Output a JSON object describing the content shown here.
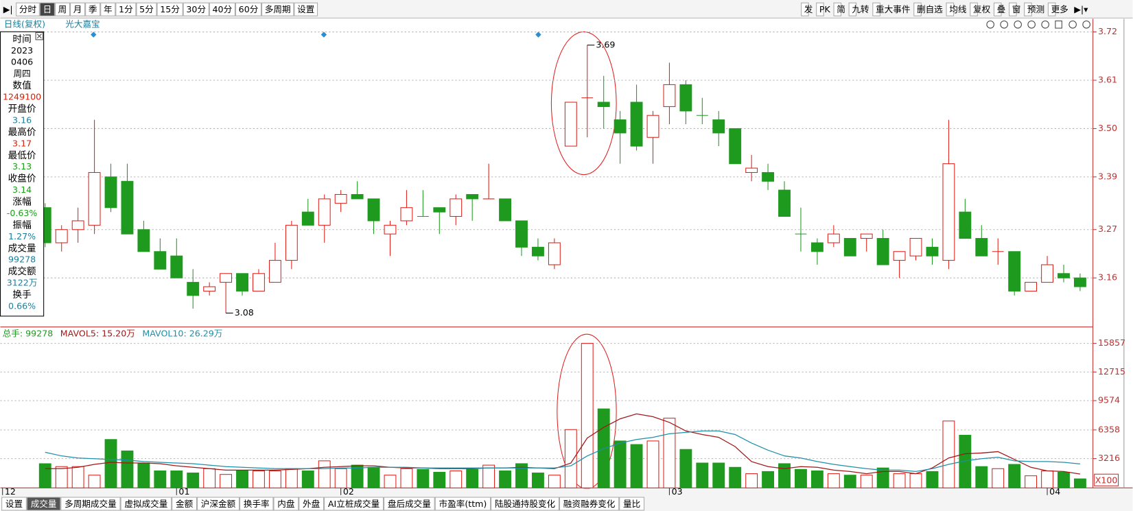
{
  "toolbar": {
    "left": [
      "分时",
      "日",
      "周",
      "月",
      "季",
      "年",
      "1分",
      "5分",
      "15分",
      "30分",
      "40分",
      "60分",
      "多周期",
      "设置"
    ],
    "selected": 1,
    "right": [
      "发",
      "PK",
      "简",
      "九转",
      "重大事件",
      "删自选",
      "均线",
      "复权",
      "叠",
      "窗",
      "预测",
      "更多"
    ]
  },
  "header": {
    "period": "日线(复权)",
    "stock": "光大嘉宝"
  },
  "info_panel": [
    {
      "label": "时间",
      "lines": [
        "2023",
        "0406",
        "周四"
      ],
      "color": "#000000"
    },
    {
      "label": "数值",
      "lines": [
        "1249100"
      ],
      "color": "#d81e06"
    },
    {
      "label": "开盘价",
      "lines": [
        "3.16"
      ],
      "color": "#1a7fa0"
    },
    {
      "label": "最高价",
      "lines": [
        "3.17"
      ],
      "color": "#d81e06"
    },
    {
      "label": "最低价",
      "lines": [
        "3.13"
      ],
      "color": "#16a016"
    },
    {
      "label": "收盘价",
      "lines": [
        "3.14"
      ],
      "color": "#16a016"
    },
    {
      "label": "涨幅",
      "lines": [
        "-0.63%"
      ],
      "color": "#16a016"
    },
    {
      "label": "振幅",
      "lines": [
        "1.27%"
      ],
      "color": "#1a7fa0"
    },
    {
      "label": "成交量",
      "lines": [
        "99278"
      ],
      "color": "#1a7fa0"
    },
    {
      "label": "成交额",
      "lines": [
        "3122万"
      ],
      "color": "#1a7fa0"
    },
    {
      "label": "换手",
      "lines": [
        "0.66%"
      ],
      "color": "#1a7fa0"
    }
  ],
  "chart_data": [
    {
      "type": "candlestick",
      "up_color": "#e0201a",
      "down_color": "#1e9a1e",
      "open": [
        3.32,
        3.24,
        3.27,
        3.28,
        3.39,
        3.38,
        3.27,
        3.22,
        3.21,
        3.15,
        3.13,
        3.15,
        3.17,
        3.13,
        3.15,
        3.2,
        3.31,
        3.28,
        3.33,
        3.35,
        3.34,
        3.26,
        3.29,
        3.3,
        3.32,
        3.3,
        3.35,
        3.34,
        3.34,
        3.29,
        3.23,
        3.19,
        3.46,
        3.57,
        3.56,
        3.52,
        3.56,
        3.48,
        3.55,
        3.6,
        3.53,
        3.52,
        3.5,
        3.4,
        3.4,
        3.36,
        3.26,
        3.24,
        3.24,
        3.25,
        3.25,
        3.25,
        3.2,
        3.21,
        3.23,
        3.2,
        3.31,
        3.25,
        3.22,
        3.22,
        3.13,
        3.15,
        3.17,
        3.16
      ],
      "high": [
        3.33,
        3.28,
        3.32,
        3.52,
        3.42,
        3.42,
        3.29,
        3.25,
        3.25,
        3.18,
        3.15,
        3.17,
        3.17,
        3.18,
        3.24,
        3.29,
        3.34,
        3.35,
        3.36,
        3.38,
        3.34,
        3.29,
        3.36,
        3.36,
        3.32,
        3.35,
        3.35,
        3.42,
        3.34,
        3.29,
        3.25,
        3.25,
        3.56,
        3.69,
        3.62,
        3.54,
        3.6,
        3.54,
        3.65,
        3.61,
        3.57,
        3.54,
        3.5,
        3.44,
        3.42,
        3.38,
        3.32,
        3.25,
        3.28,
        3.25,
        3.26,
        3.27,
        3.22,
        3.25,
        3.25,
        3.52,
        3.34,
        3.28,
        3.25,
        3.22,
        3.15,
        3.21,
        3.19,
        3.17
      ],
      "low": [
        3.23,
        3.22,
        3.24,
        3.26,
        3.31,
        3.26,
        3.22,
        3.18,
        3.16,
        3.09,
        3.12,
        3.08,
        3.12,
        3.13,
        3.15,
        3.18,
        3.28,
        3.24,
        3.31,
        3.34,
        3.26,
        3.21,
        3.28,
        3.3,
        3.26,
        3.28,
        3.29,
        3.34,
        3.29,
        3.21,
        3.2,
        3.18,
        3.46,
        3.48,
        3.5,
        3.42,
        3.45,
        3.42,
        3.51,
        3.51,
        3.51,
        3.46,
        3.42,
        3.38,
        3.36,
        3.3,
        3.22,
        3.19,
        3.23,
        3.21,
        3.22,
        3.19,
        3.16,
        3.2,
        3.19,
        3.18,
        3.25,
        3.21,
        3.19,
        3.12,
        3.13,
        3.15,
        3.15,
        3.13
      ],
      "close": [
        3.24,
        3.27,
        3.29,
        3.4,
        3.32,
        3.26,
        3.22,
        3.18,
        3.16,
        3.12,
        3.14,
        3.17,
        3.13,
        3.17,
        3.2,
        3.28,
        3.28,
        3.34,
        3.35,
        3.34,
        3.29,
        3.28,
        3.32,
        3.3,
        3.31,
        3.34,
        3.34,
        3.34,
        3.29,
        3.23,
        3.21,
        3.24,
        3.56,
        3.57,
        3.55,
        3.49,
        3.46,
        3.53,
        3.6,
        3.54,
        3.53,
        3.49,
        3.42,
        3.41,
        3.38,
        3.3,
        3.26,
        3.22,
        3.26,
        3.21,
        3.26,
        3.19,
        3.22,
        3.25,
        3.21,
        3.42,
        3.25,
        3.21,
        3.22,
        3.13,
        3.15,
        3.19,
        3.16,
        3.14
      ],
      "ylim": [
        3.05,
        3.75
      ],
      "yticks": [
        3.16,
        3.27,
        3.39,
        {
          "value": 3.5,
          "label": "3.50"
        },
        3.61,
        3.72
      ],
      "grid": true
    },
    {
      "type": "volume",
      "ylim": [
        0,
        17500
      ],
      "yticks": [
        3216,
        6358,
        9574,
        12715,
        15857
      ],
      "grid": true,
      "unit_label": "X100",
      "categories": [
        "12",
        null,
        null,
        null,
        null,
        null,
        null,
        null,
        "01",
        null,
        null,
        null,
        null,
        null,
        null,
        null,
        null,
        null,
        "02",
        null,
        null,
        null,
        null,
        null,
        null,
        null,
        null,
        null,
        null,
        null,
        null,
        null,
        null,
        null,
        null,
        null,
        null,
        null,
        "03",
        null,
        null,
        null,
        null,
        null,
        null,
        null,
        null,
        null,
        null,
        null,
        null,
        null,
        null,
        null,
        null,
        null,
        null,
        null,
        null,
        null,
        null,
        "04",
        null,
        null
      ],
      "series": [
        {
          "name": "总手: 99278",
          "color": "#1e9a1e",
          "values": [
            2656,
            2340,
            2340,
            1400,
            5310,
            4060,
            2730,
            1870,
            1870,
            1640,
            2110,
            1480,
            1870,
            1870,
            1870,
            2110,
            1870,
            2970,
            2110,
            2500,
            2260,
            1400,
            2110,
            2030,
            1720,
            1870,
            2030,
            2500,
            1870,
            2660,
            1640,
            1400,
            6400,
            15857,
            8670,
            5150,
            4760,
            5150,
            7650,
            4220,
            2730,
            2730,
            2260,
            1560,
            1800,
            2660,
            2030,
            1870,
            1560,
            1400,
            1400,
            2190,
            1560,
            1560,
            1800,
            7340,
            5780,
            2340,
            2110,
            2580,
            1330,
            1870,
            1720,
            992.78
          ]
        },
        {
          "name": "MAVOL5: 15.20万",
          "color": "#a01818",
          "values": [
            2110,
            2110,
            2260,
            2580,
            2810,
            2730,
            2730,
            2660,
            2420,
            2260,
            2110,
            1950,
            1950,
            1950,
            1950,
            2030,
            2110,
            2260,
            2340,
            2420,
            2420,
            2260,
            2190,
            2190,
            2110,
            2110,
            2110,
            2190,
            2190,
            2260,
            2190,
            2110,
            2730,
            5470,
            6640,
            7580,
            8120,
            7810,
            7190,
            6250,
            5860,
            5550,
            4530,
            2890,
            2340,
            2110,
            2340,
            2260,
            1950,
            1800,
            1560,
            1800,
            1800,
            1560,
            2190,
            3280,
            3750,
            3830,
            3980,
            3120,
            2260,
            1870,
            1800,
            1520
          ]
        },
        {
          "name": "MAVOL10: 26.29万",
          "color": "#1e8fa8",
          "values": [
            3910,
            3510,
            3280,
            3200,
            3120,
            3050,
            2890,
            2810,
            2730,
            2660,
            2500,
            2340,
            2260,
            2190,
            2110,
            2110,
            2110,
            2110,
            2190,
            2190,
            2260,
            2260,
            2260,
            2190,
            2190,
            2190,
            2190,
            2190,
            2190,
            2190,
            2190,
            2190,
            2420,
            3510,
            4300,
            4920,
            5310,
            5550,
            5940,
            6090,
            6250,
            6250,
            5860,
            4920,
            4140,
            3510,
            3280,
            2890,
            2580,
            2340,
            2110,
            1950,
            1950,
            1800,
            2110,
            2580,
            2970,
            3200,
            3360,
            2970,
            2890,
            2890,
            2810,
            2629
          ]
        }
      ]
    }
  ],
  "bottom_tabs": {
    "items": [
      "设置",
      "成交量",
      "多周期成交量",
      "虚拟成交量",
      "金额",
      "沪深金额",
      "换手率",
      "内盘",
      "外盘",
      "AI立桩成交量",
      "盘后成交量",
      "市盈率(ttm)",
      "陆股通持股变化",
      "融资融券变化",
      "量比"
    ],
    "selected": 1
  }
}
